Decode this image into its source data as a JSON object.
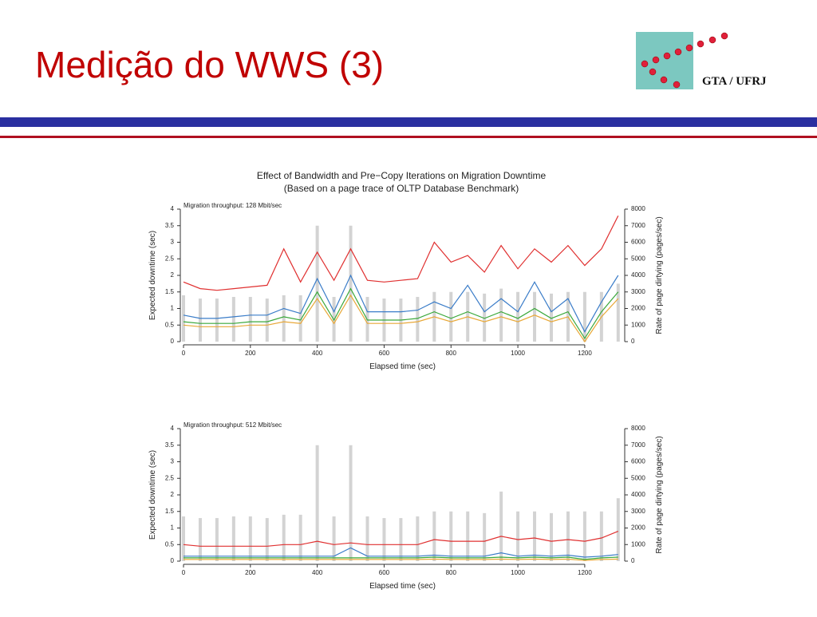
{
  "header": {
    "title": "Medição do WWS (3)",
    "logo_text": "GTA / UFRJ"
  },
  "chart_data": [
    {
      "type": "line",
      "title": "Effect of Bandwidth and Pre−Copy Iterations on Migration Downtime",
      "subtitle": "(Based on a page trace of OLTP Database Benchmark)",
      "annotation": "Migration throughput: 128 Mbit/sec",
      "xlabel": "Elapsed time (sec)",
      "ylabel": "Expected downtime (sec)",
      "y2label": "Rate of page dirtying (pages/sec)",
      "xlim": [
        0,
        1310
      ],
      "xticks": [
        0,
        200,
        400,
        600,
        800,
        1000,
        1200
      ],
      "ylim": [
        0,
        4
      ],
      "yticks": [
        0,
        0.5,
        1,
        1.5,
        2,
        2.5,
        3,
        3.5,
        4
      ],
      "y2lim": [
        0,
        8000
      ],
      "y2ticks": [
        0,
        1000,
        2000,
        3000,
        4000,
        5000,
        6000,
        7000,
        8000
      ],
      "x": [
        0,
        50,
        100,
        150,
        200,
        250,
        300,
        350,
        400,
        450,
        500,
        550,
        600,
        650,
        700,
        750,
        800,
        850,
        900,
        950,
        1000,
        1050,
        1100,
        1150,
        1200,
        1250,
        1300
      ],
      "series": [
        {
          "type": "bar",
          "axis": "y2",
          "color": "#d3d3d3",
          "values": [
            2800,
            2600,
            2600,
            2700,
            2700,
            2600,
            2800,
            2800,
            7000,
            2700,
            7000,
            2700,
            2600,
            2600,
            2700,
            3000,
            3000,
            3000,
            2900,
            3200,
            3000,
            3000,
            2900,
            3000,
            3000,
            3000,
            3500
          ]
        },
        {
          "color": "#e03030",
          "values": [
            1.8,
            1.6,
            1.55,
            1.6,
            1.65,
            1.7,
            2.8,
            1.8,
            2.7,
            1.85,
            2.8,
            1.85,
            1.8,
            1.85,
            1.9,
            3.0,
            2.4,
            2.6,
            2.1,
            2.9,
            2.2,
            2.8,
            2.4,
            2.9,
            2.3,
            2.8,
            3.8
          ]
        },
        {
          "color": "#3a7cc8",
          "values": [
            0.8,
            0.7,
            0.7,
            0.75,
            0.8,
            0.8,
            1.0,
            0.85,
            1.9,
            0.9,
            2.0,
            0.9,
            0.9,
            0.9,
            0.95,
            1.2,
            1.0,
            1.7,
            0.9,
            1.3,
            0.9,
            1.8,
            0.9,
            1.3,
            0.3,
            1.2,
            2.0
          ]
        },
        {
          "color": "#3aa83a",
          "values": [
            0.6,
            0.55,
            0.55,
            0.55,
            0.6,
            0.6,
            0.75,
            0.65,
            1.5,
            0.65,
            1.6,
            0.65,
            0.65,
            0.65,
            0.7,
            0.9,
            0.7,
            0.9,
            0.7,
            0.9,
            0.7,
            1.0,
            0.7,
            0.9,
            0.1,
            0.9,
            1.5
          ]
        },
        {
          "color": "#e8a838",
          "values": [
            0.5,
            0.45,
            0.45,
            0.45,
            0.5,
            0.5,
            0.6,
            0.55,
            1.3,
            0.55,
            1.4,
            0.55,
            0.55,
            0.55,
            0.6,
            0.75,
            0.6,
            0.75,
            0.6,
            0.75,
            0.6,
            0.8,
            0.6,
            0.75,
            0.0,
            0.75,
            1.3
          ]
        }
      ]
    },
    {
      "type": "line",
      "annotation": "Migration throughput: 512 Mbit/sec",
      "xlabel": "Elapsed time (sec)",
      "ylabel": "Expected downtime (sec)",
      "y2label": "Rate of page dirtying (pages/sec)",
      "xlim": [
        0,
        1310
      ],
      "xticks": [
        0,
        200,
        400,
        600,
        800,
        1000,
        1200
      ],
      "ylim": [
        0,
        4
      ],
      "yticks": [
        0,
        0.5,
        1,
        1.5,
        2,
        2.5,
        3,
        3.5,
        4
      ],
      "y2lim": [
        0,
        8000
      ],
      "y2ticks": [
        0,
        1000,
        2000,
        3000,
        4000,
        5000,
        6000,
        7000,
        8000
      ],
      "x": [
        0,
        50,
        100,
        150,
        200,
        250,
        300,
        350,
        400,
        450,
        500,
        550,
        600,
        650,
        700,
        750,
        800,
        850,
        900,
        950,
        1000,
        1050,
        1100,
        1150,
        1200,
        1250,
        1300
      ],
      "series": [
        {
          "type": "bar",
          "axis": "y2",
          "color": "#d3d3d3",
          "values": [
            2700,
            2600,
            2600,
            2700,
            2700,
            2600,
            2800,
            2800,
            7000,
            2700,
            7000,
            2700,
            2600,
            2600,
            2700,
            3000,
            3000,
            3000,
            2900,
            4200,
            3000,
            3000,
            2900,
            3000,
            3000,
            3000,
            3800
          ]
        },
        {
          "color": "#e03030",
          "values": [
            0.5,
            0.45,
            0.45,
            0.45,
            0.45,
            0.45,
            0.5,
            0.5,
            0.6,
            0.5,
            0.55,
            0.5,
            0.5,
            0.5,
            0.5,
            0.65,
            0.6,
            0.6,
            0.6,
            0.75,
            0.65,
            0.7,
            0.6,
            0.65,
            0.6,
            0.7,
            0.9
          ]
        },
        {
          "color": "#3a7cc8",
          "values": [
            0.15,
            0.15,
            0.15,
            0.15,
            0.15,
            0.15,
            0.15,
            0.15,
            0.15,
            0.15,
            0.4,
            0.15,
            0.15,
            0.15,
            0.15,
            0.18,
            0.15,
            0.15,
            0.15,
            0.25,
            0.15,
            0.18,
            0.15,
            0.18,
            0.12,
            0.15,
            0.2
          ]
        },
        {
          "color": "#3aa83a",
          "values": [
            0.1,
            0.1,
            0.1,
            0.1,
            0.1,
            0.1,
            0.1,
            0.1,
            0.1,
            0.1,
            0.1,
            0.1,
            0.1,
            0.1,
            0.1,
            0.12,
            0.1,
            0.1,
            0.1,
            0.12,
            0.1,
            0.12,
            0.1,
            0.12,
            0.05,
            0.1,
            0.12
          ]
        },
        {
          "color": "#e8a838",
          "values": [
            0.05,
            0.05,
            0.05,
            0.05,
            0.05,
            0.05,
            0.05,
            0.05,
            0.05,
            0.05,
            0.05,
            0.05,
            0.05,
            0.05,
            0.05,
            0.06,
            0.05,
            0.05,
            0.05,
            0.06,
            0.05,
            0.06,
            0.05,
            0.06,
            0.02,
            0.05,
            0.06
          ]
        }
      ]
    }
  ]
}
